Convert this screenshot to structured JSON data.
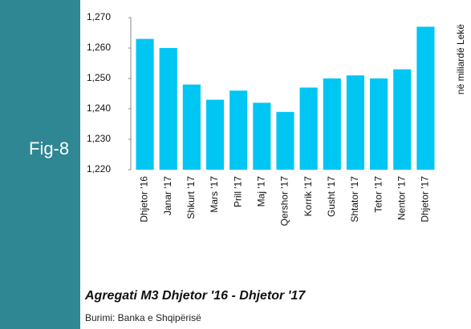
{
  "label": "Fig-8",
  "chart_data": {
    "type": "bar",
    "title": "Agregati M3 Dhjetor '16 - Dhjetor '17",
    "source": "Burimi: Banka e Shqipërisë",
    "y_label": "në miliardë Lekë",
    "categories": [
      "Dhjetor '16",
      "Janar '17",
      "Shkurt '17",
      "Mars '17",
      "Prill '17",
      "Maj '17",
      "Qershor '17",
      "Korrik '17",
      "Gusht '17",
      "Shtator '17",
      "Tetor '17",
      "Nentor '17",
      "Dhjetor '17"
    ],
    "values": [
      1263,
      1260,
      1248,
      1243,
      1246,
      1242,
      1239,
      1247,
      1250,
      1251,
      1250,
      1253,
      1267
    ],
    "color": "#00c6f4",
    "ylim": [
      1220,
      1270
    ],
    "yticks": [
      {
        "value": 1220,
        "label": "1,220"
      },
      {
        "value": 1230,
        "label": "1,230"
      },
      {
        "value": 1240,
        "label": "1,240"
      },
      {
        "value": 1250,
        "label": "1,250"
      },
      {
        "value": 1260,
        "label": "1,260"
      },
      {
        "value": 1270,
        "label": "1,270"
      }
    ],
    "grid": false
  }
}
